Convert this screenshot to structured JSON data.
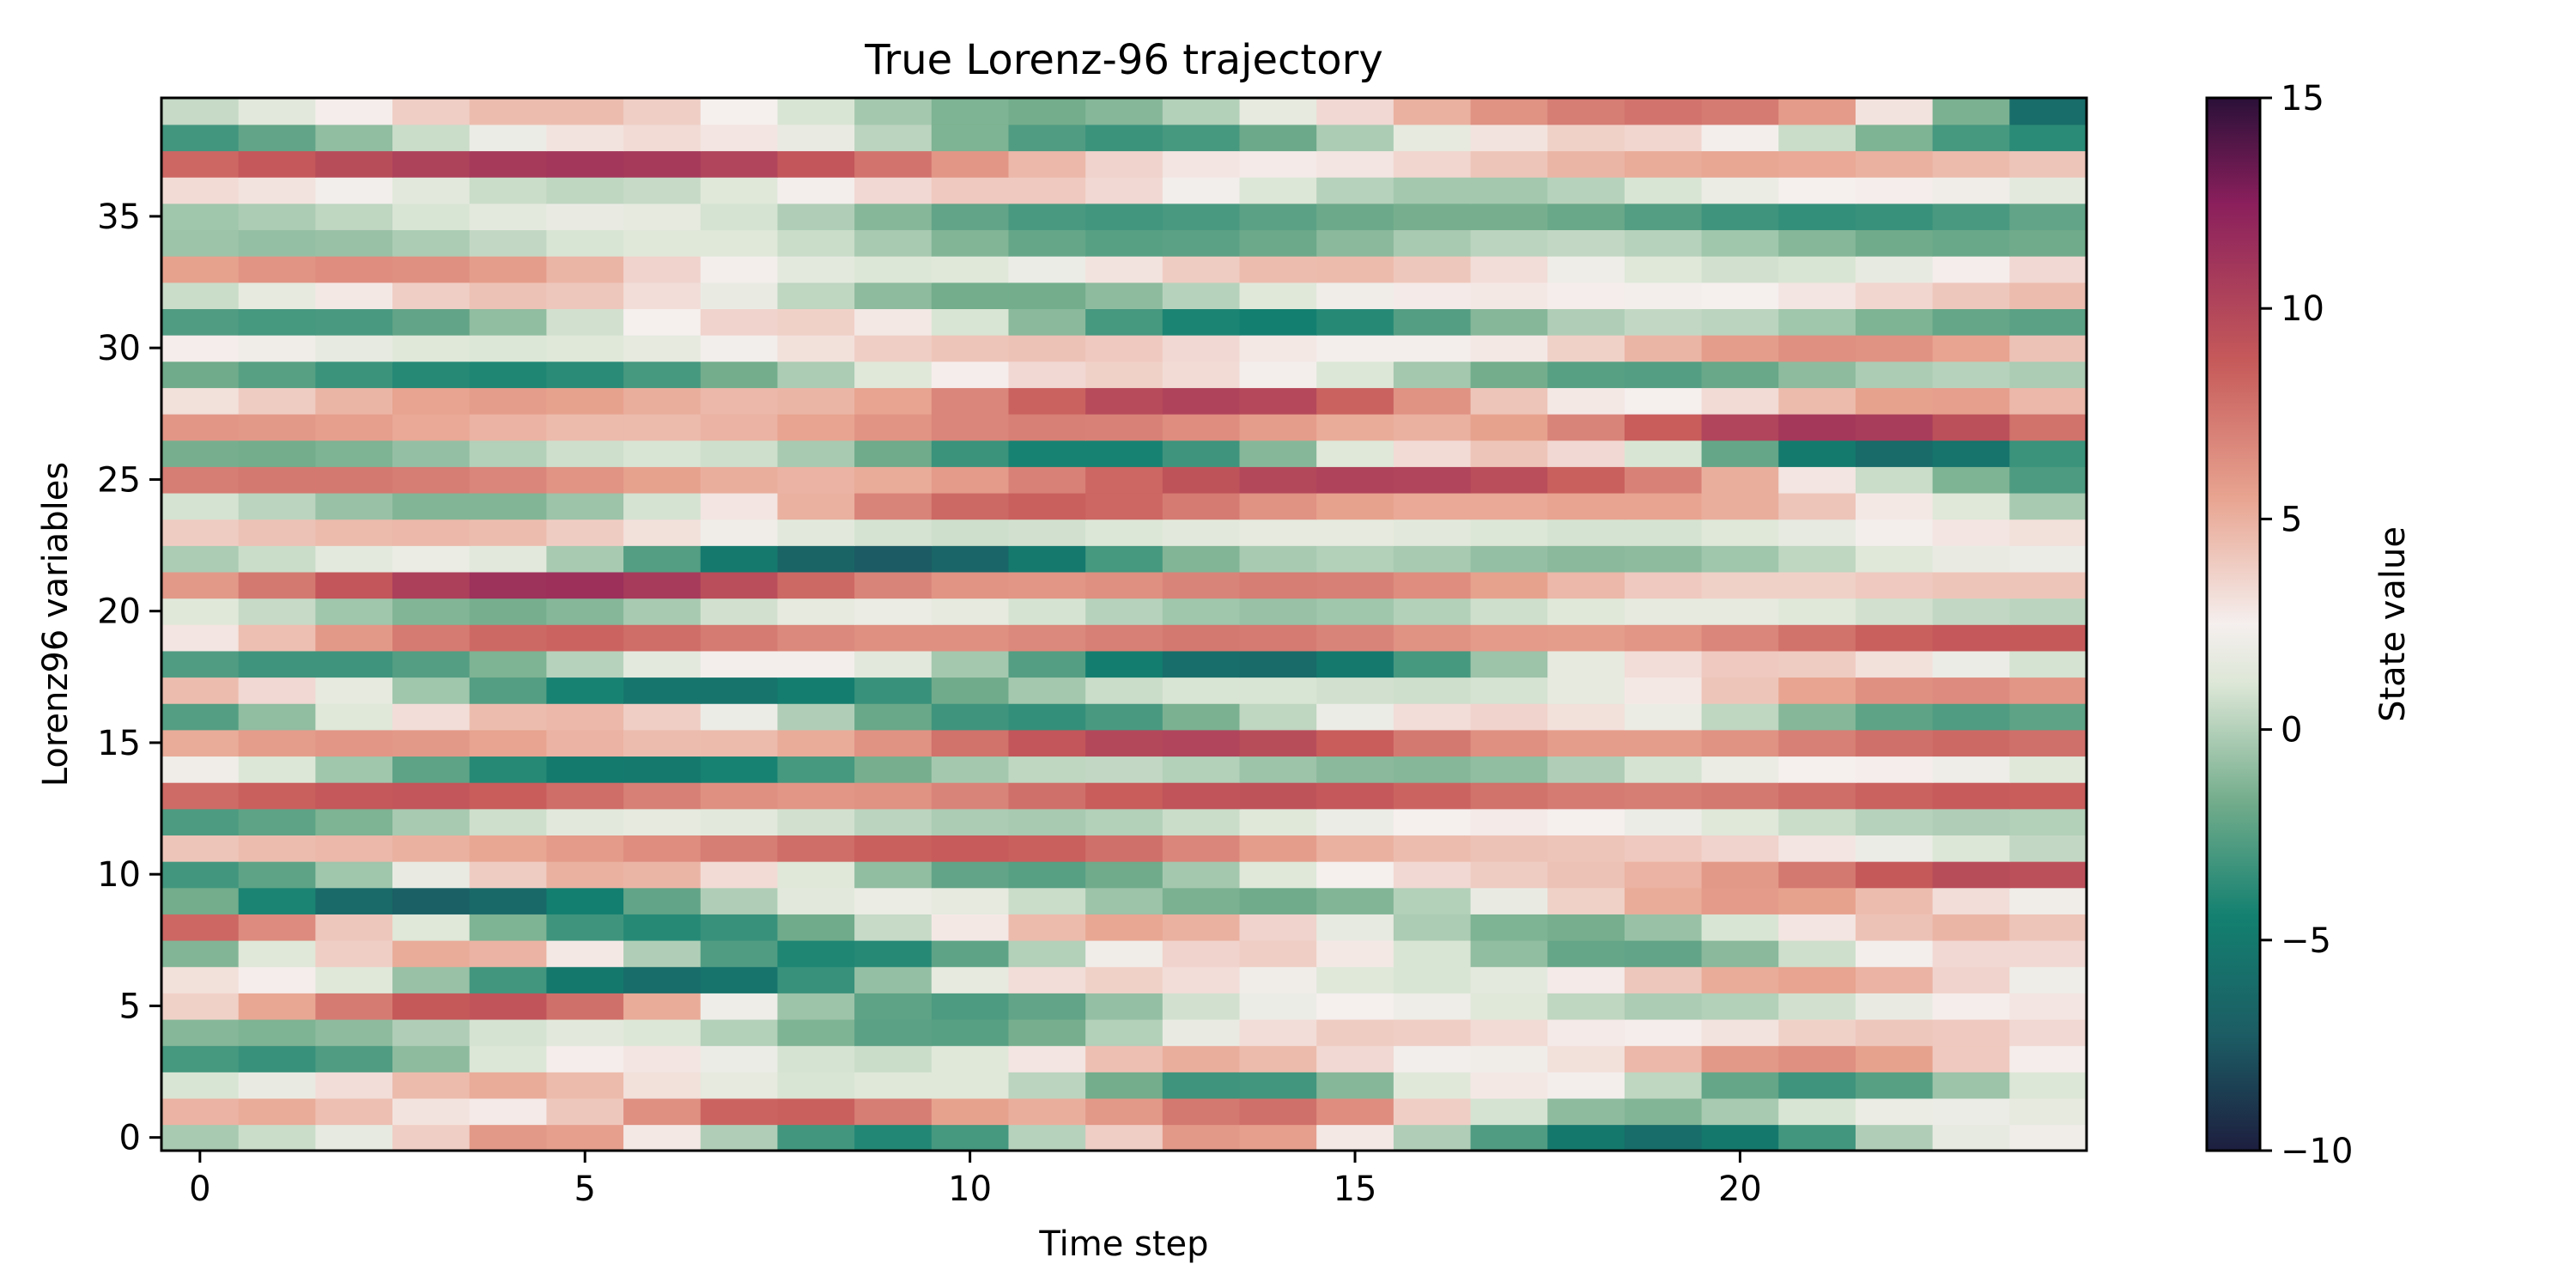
{
  "chart_data": {
    "type": "heatmap",
    "title": "True Lorenz-96 trajectory",
    "xlabel": "Time step",
    "ylabel": "Lorenz96 variables",
    "colorbar_label": "State value",
    "xlim": [
      -0.5,
      24.5
    ],
    "ylim": [
      -0.5,
      39.5
    ],
    "x_ticks": [
      0,
      5,
      10,
      15,
      20
    ],
    "x_tick_labels": [
      "0",
      "5",
      "10",
      "15",
      "20"
    ],
    "y_ticks": [
      0,
      5,
      10,
      15,
      20,
      25,
      30,
      35
    ],
    "y_tick_labels": [
      "0",
      "5",
      "10",
      "15",
      "20",
      "25",
      "30",
      "35"
    ],
    "color_range": [
      -10,
      15
    ],
    "colorbar_ticks": [
      -10,
      -5,
      0,
      5,
      10,
      15
    ],
    "colorbar_tick_labels": [
      "−10",
      "−5",
      "0",
      "5",
      "10",
      "15"
    ],
    "colormap_colors": [
      "#1d1e3f",
      "#1c5d64",
      "#138070",
      "#74ad8c",
      "#dde7d7",
      "#f5efee",
      "#e8a490",
      "#c65a5a",
      "#8a1f5c",
      "#2a1038"
    ],
    "n_time_steps": 25,
    "n_variables": 40,
    "grid": false,
    "values": [
      [
        -0.3,
        0.6,
        1.7,
        3.8,
        6.0,
        5.7,
        2.8,
        -0.1,
        -3.1,
        -4.0,
        -3.0,
        0.1,
        3.8,
        6.0,
        5.7,
        2.8,
        -0.1,
        -2.7,
        -5.1,
        -6.0,
        -5.1,
        -3.1,
        -0.1,
        1.7,
        2.2
      ],
      [
        4.9,
        5.2,
        4.4,
        3.0,
        2.7,
        4.1,
        6.4,
        8.3,
        8.5,
        7.2,
        5.6,
        5.1,
        6.0,
        7.4,
        7.8,
        6.5,
        3.8,
        0.9,
        -1.0,
        -1.3,
        -0.3,
        1.0,
        1.9,
        2.0,
        1.6
      ],
      [
        1.0,
        1.8,
        3.2,
        4.6,
        5.2,
        4.6,
        3.1,
        1.6,
        1.0,
        1.2,
        1.3,
        0.2,
        -1.7,
        -3.2,
        -3.1,
        -1.2,
        1.3,
        2.8,
        2.4,
        0.3,
        -2.1,
        -3.2,
        -2.5,
        -0.6,
        1.1
      ],
      [
        -3.0,
        -3.4,
        -2.7,
        -1.0,
        1.1,
        2.6,
        2.9,
        2.0,
        0.9,
        0.6,
        1.3,
        2.9,
        4.4,
        5.1,
        4.6,
        3.4,
        2.3,
        2.2,
        3.1,
        4.7,
        6.0,
        6.4,
        5.6,
        4.0,
        2.6
      ],
      [
        -1.2,
        -1.4,
        -1.0,
        -0.1,
        0.9,
        1.4,
        1.1,
        0.0,
        -1.4,
        -2.4,
        -2.5,
        -1.6,
        0.0,
        1.8,
        3.2,
        3.9,
        3.8,
        3.3,
        2.7,
        2.6,
        3.0,
        3.7,
        4.1,
        4.0,
        3.4
      ],
      [
        3.7,
        5.4,
        7.3,
        8.8,
        9.1,
        7.8,
        5.2,
        2.1,
        -0.6,
        -2.3,
        -2.8,
        -2.2,
        -0.8,
        0.8,
        2.0,
        2.5,
        2.1,
        1.2,
        0.3,
        -0.2,
        0.0,
        0.8,
        1.8,
        2.6,
        2.9
      ],
      [
        3.1,
        2.6,
        1.3,
        -0.7,
        -3.1,
        -5.1,
        -6.0,
        -5.4,
        -3.4,
        -0.8,
        1.6,
        3.2,
        3.7,
        3.2,
        2.2,
        1.3,
        1.0,
        1.5,
        2.7,
        4.1,
        5.2,
        5.5,
        4.9,
        3.6,
        2.1
      ],
      [
        -1.3,
        1.2,
        3.8,
        5.2,
        4.9,
        2.8,
        -0.1,
        -2.7,
        -4.1,
        -3.9,
        -2.3,
        0.0,
        2.2,
        3.6,
        3.8,
        2.8,
        1.0,
        -0.9,
        -2.1,
        -2.2,
        -1.1,
        0.7,
        2.4,
        3.4,
        3.4
      ],
      [
        8.2,
        6.6,
        4.1,
        1.2,
        -1.4,
        -3.2,
        -3.9,
        -3.4,
        -1.8,
        0.5,
        2.8,
        4.6,
        5.4,
        5.0,
        3.6,
        1.7,
        -0.2,
        -1.4,
        -1.6,
        -0.7,
        1.0,
        2.9,
        4.3,
        4.8,
        4.2
      ],
      [
        -1.7,
        -4.2,
        -6.2,
        -7.0,
        -6.3,
        -4.5,
        -2.2,
        -0.1,
        1.4,
        1.9,
        1.6,
        0.6,
        -0.6,
        -1.5,
        -1.8,
        -1.3,
        0.0,
        1.8,
        3.7,
        5.2,
        5.9,
        5.6,
        4.5,
        3.2,
        2.2
      ],
      [
        -3.1,
        -2.3,
        -0.5,
        1.8,
        3.9,
        5.0,
        4.8,
        3.3,
        1.2,
        -0.9,
        -2.2,
        -2.5,
        -1.8,
        -0.4,
        1.2,
        2.5,
        3.4,
        3.9,
        4.3,
        4.9,
        6.0,
        7.4,
        8.8,
        9.6,
        9.4
      ],
      [
        4.2,
        4.5,
        4.7,
        5.0,
        5.4,
        5.9,
        6.5,
        7.2,
        7.9,
        8.5,
        8.7,
        8.5,
        7.8,
        6.8,
        5.8,
        5.0,
        4.5,
        4.3,
        4.2,
        4.0,
        3.6,
        2.9,
        2.0,
        1.1,
        0.4
      ],
      [
        -2.8,
        -2.3,
        -1.4,
        -0.3,
        0.7,
        1.4,
        1.6,
        1.4,
        0.8,
        0.2,
        -0.2,
        -0.3,
        0.0,
        0.6,
        1.3,
        2.0,
        2.5,
        2.7,
        2.5,
        2.0,
        1.3,
        0.6,
        0.1,
        -0.1,
        0.0
      ],
      [
        8.0,
        8.5,
        8.9,
        9.0,
        8.6,
        7.9,
        7.1,
        6.4,
        6.1,
        6.3,
        6.9,
        7.8,
        8.6,
        9.1,
        9.2,
        8.9,
        8.3,
        7.7,
        7.3,
        7.2,
        7.4,
        7.9,
        8.4,
        8.7,
        8.6
      ],
      [
        2.2,
        1.1,
        -0.5,
        -2.3,
        -3.9,
        -4.9,
        -5.0,
        -4.3,
        -3.0,
        -1.6,
        -0.4,
        0.3,
        0.4,
        0.0,
        -0.6,
        -1.1,
        -1.2,
        -0.9,
        -0.1,
        0.9,
        1.9,
        2.5,
        2.6,
        2.1,
        1.3
      ],
      [
        5.2,
        5.8,
        6.1,
        6.0,
        5.5,
        4.9,
        4.5,
        4.6,
        5.2,
        6.3,
        7.7,
        9.0,
        9.9,
        10.1,
        9.6,
        8.6,
        7.4,
        6.4,
        5.8,
        5.8,
        6.3,
        7.1,
        7.8,
        8.1,
        7.8
      ],
      [
        -2.6,
        -0.9,
        1.2,
        3.2,
        4.5,
        4.7,
        3.8,
        2.0,
        -0.1,
        -2.0,
        -3.2,
        -3.5,
        -2.9,
        -1.5,
        0.3,
        2.0,
        3.2,
        3.6,
        3.1,
        1.9,
        0.3,
        -1.2,
        -2.3,
        -2.7,
        -2.3
      ],
      [
        4.5,
        3.4,
        1.6,
        -0.5,
        -2.6,
        -4.3,
        -5.3,
        -5.4,
        -4.7,
        -3.4,
        -1.8,
        -0.4,
        0.6,
        1.0,
        1.0,
        0.8,
        0.7,
        0.9,
        1.6,
        2.8,
        4.2,
        5.5,
        6.4,
        6.6,
        6.1
      ],
      [
        -2.7,
        -3.2,
        -3.2,
        -2.6,
        -1.4,
        0.1,
        1.5,
        2.4,
        2.4,
        1.4,
        -0.4,
        -2.6,
        -4.6,
        -5.9,
        -6.1,
        -5.0,
        -3.0,
        -0.6,
        1.6,
        3.2,
        4.0,
        3.9,
        3.1,
        2.0,
        0.9
      ],
      [
        2.9,
        4.4,
        6.0,
        7.3,
        8.1,
        8.3,
        7.9,
        7.3,
        6.7,
        6.4,
        6.4,
        6.7,
        7.1,
        7.4,
        7.3,
        6.9,
        6.3,
        5.9,
        5.8,
        6.1,
        6.8,
        7.7,
        8.5,
        8.9,
        8.8
      ],
      [
        1.3,
        0.5,
        -0.5,
        -1.3,
        -1.6,
        -1.2,
        -0.3,
        0.8,
        1.6,
        1.9,
        1.6,
        0.9,
        0.1,
        -0.5,
        -0.7,
        -0.5,
        0.0,
        0.7,
        1.3,
        1.6,
        1.6,
        1.3,
        0.8,
        0.4,
        0.2
      ],
      [
        6.0,
        7.4,
        9.0,
        10.4,
        11.3,
        11.4,
        10.7,
        9.5,
        8.1,
        6.9,
        6.2,
        6.1,
        6.4,
        6.9,
        7.2,
        7.1,
        6.5,
        5.6,
        4.7,
        4.0,
        3.7,
        3.7,
        4.0,
        4.2,
        4.2
      ],
      [
        -0.2,
        0.6,
        1.5,
        1.9,
        1.4,
        -0.3,
        -2.6,
        -5.0,
        -6.7,
        -7.3,
        -6.6,
        -5.0,
        -3.0,
        -1.3,
        -0.3,
        0.0,
        -0.3,
        -0.8,
        -1.1,
        -1.0,
        -0.5,
        0.3,
        1.2,
        1.8,
        2.0
      ],
      [
        3.9,
        4.3,
        4.6,
        4.7,
        4.5,
        3.9,
        3.1,
        2.2,
        1.4,
        0.9,
        0.7,
        0.8,
        1.1,
        1.4,
        1.6,
        1.6,
        1.4,
        1.1,
        0.9,
        0.9,
        1.2,
        1.7,
        2.4,
        2.9,
        3.1
      ],
      [
        0.9,
        0.2,
        -0.7,
        -1.3,
        -1.3,
        -0.6,
        0.9,
        2.9,
        5.0,
        6.9,
        8.1,
        8.5,
        8.2,
        7.3,
        6.3,
        5.6,
        5.3,
        5.3,
        5.5,
        5.5,
        5.1,
        4.2,
        2.8,
        1.2,
        -0.3
      ],
      [
        7.2,
        7.4,
        7.4,
        7.2,
        6.8,
        6.2,
        5.6,
        5.1,
        4.9,
        5.2,
        5.9,
        7.0,
        8.2,
        9.2,
        9.9,
        10.2,
        10.1,
        9.5,
        8.5,
        7.0,
        5.1,
        2.9,
        0.6,
        -1.4,
        -2.8
      ],
      [
        -1.6,
        -1.7,
        -1.4,
        -0.8,
        0.0,
        0.7,
        1.0,
        0.7,
        -0.3,
        -1.8,
        -3.3,
        -4.3,
        -4.3,
        -3.2,
        -1.2,
        1.2,
        3.3,
        4.2,
        3.4,
        1.0,
        -2.1,
        -4.9,
        -6.1,
        -5.4,
        -3.3
      ],
      [
        6.1,
        6.0,
        5.7,
        5.3,
        4.9,
        4.6,
        4.6,
        4.9,
        5.5,
        6.2,
        6.8,
        7.1,
        7.0,
        6.5,
        5.8,
        5.2,
        5.0,
        5.6,
        6.9,
        8.6,
        10.1,
        10.9,
        10.6,
        9.4,
        7.7
      ],
      [
        3.1,
        3.9,
        4.8,
        5.5,
        5.8,
        5.6,
        5.1,
        4.7,
        4.8,
        5.5,
        6.8,
        8.4,
        9.7,
        10.2,
        9.8,
        8.4,
        6.3,
        4.2,
        2.8,
        2.5,
        3.3,
        4.6,
        5.6,
        5.7,
        4.7
      ],
      [
        -1.8,
        -2.5,
        -3.3,
        -3.9,
        -4.1,
        -3.8,
        -3.0,
        -1.7,
        -0.2,
        1.3,
        2.6,
        3.4,
        3.7,
        3.3,
        2.4,
        1.1,
        -0.4,
        -1.7,
        -2.5,
        -2.6,
        -2.0,
        -1.0,
        -0.2,
        0.1,
        -0.2
      ],
      [
        2.6,
        2.2,
        1.7,
        1.3,
        1.1,
        1.2,
        1.6,
        2.3,
        3.1,
        3.8,
        4.2,
        4.3,
        4.0,
        3.4,
        2.8,
        2.4,
        2.4,
        2.8,
        3.7,
        4.8,
        5.8,
        6.4,
        6.3,
        5.5,
        4.3
      ],
      [
        -2.7,
        -3.0,
        -2.9,
        -2.2,
        -0.9,
        0.8,
        2.5,
        3.6,
        3.7,
        2.8,
        1.0,
        -1.1,
        -3.0,
        -4.2,
        -4.5,
        -3.9,
        -2.6,
        -1.2,
        -0.1,
        0.4,
        0.2,
        -0.5,
        -1.4,
        -2.1,
        -2.4
      ],
      [
        0.6,
        1.6,
        2.8,
        3.8,
        4.3,
        4.1,
        3.2,
        1.8,
        0.3,
        -1.0,
        -1.7,
        -1.7,
        -1.0,
        0.1,
        1.3,
        2.2,
        2.7,
        2.8,
        2.6,
        2.4,
        2.5,
        2.9,
        3.5,
        4.1,
        4.5
      ],
      [
        5.6,
        6.2,
        6.5,
        6.4,
        5.8,
        4.8,
        3.6,
        2.4,
        1.5,
        1.1,
        1.3,
        2.0,
        3.0,
        3.9,
        4.5,
        4.6,
        4.1,
        3.2,
        2.1,
        1.2,
        0.8,
        1.0,
        1.7,
        2.6,
        3.4
      ],
      [
        -0.6,
        -0.8,
        -0.7,
        -0.2,
        0.4,
        1.0,
        1.3,
        1.2,
        0.6,
        -0.3,
        -1.3,
        -2.1,
        -2.5,
        -2.4,
        -1.9,
        -1.1,
        -0.3,
        0.2,
        0.4,
        0.1,
        -0.5,
        -1.2,
        -1.8,
        -2.0,
        -1.8
      ],
      [
        -0.5,
        -0.2,
        0.3,
        1.0,
        1.5,
        1.8,
        1.6,
        0.9,
        -0.1,
        -1.2,
        -2.2,
        -2.9,
        -3.1,
        -2.9,
        -2.4,
        -1.9,
        -1.6,
        -1.6,
        -2.0,
        -2.6,
        -3.2,
        -3.5,
        -3.4,
        -2.9,
        -2.2
      ],
      [
        3.3,
        3.0,
        2.3,
        1.4,
        0.6,
        0.3,
        0.5,
        1.3,
        2.4,
        3.4,
        4.0,
        4.0,
        3.4,
        2.3,
        1.1,
        0.1,
        -0.4,
        -0.4,
        0.1,
        1.0,
        1.9,
        2.5,
        2.6,
        2.2,
        1.5
      ],
      [
        8.2,
        8.9,
        9.6,
        10.3,
        10.8,
        11.0,
        10.8,
        10.1,
        9.0,
        7.6,
        6.1,
        4.7,
        3.6,
        2.9,
        2.7,
        2.9,
        3.5,
        4.2,
        4.8,
        5.2,
        5.4,
        5.3,
        5.0,
        4.6,
        4.2
      ],
      [
        -3.1,
        -2.2,
        -0.9,
        0.6,
        2.0,
        3.0,
        3.3,
        2.9,
        1.8,
        0.2,
        -1.4,
        -2.7,
        -3.3,
        -3.0,
        -1.9,
        -0.2,
        1.6,
        3.0,
        3.7,
        3.5,
        2.4,
        0.6,
        -1.4,
        -3.0,
        -3.8
      ],
      [
        0.5,
        1.4,
        2.6,
        3.8,
        4.5,
        4.5,
        3.8,
        2.5,
        1.0,
        -0.4,
        -1.4,
        -1.7,
        -1.2,
        0.0,
        1.6,
        3.4,
        5.0,
        6.3,
        7.2,
        7.6,
        7.3,
        5.9,
        3.0,
        -1.5,
        -6.0
      ]
    ]
  }
}
